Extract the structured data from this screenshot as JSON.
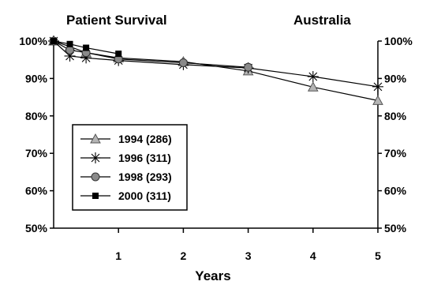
{
  "chart_data": {
    "type": "line",
    "title": "Patient Survival",
    "subtitle": "Australia",
    "xlabel": "Years",
    "ylabel": "",
    "xlim": [
      0,
      5
    ],
    "ylim": [
      50,
      100
    ],
    "x_ticks": [
      "1",
      "2",
      "3",
      "4",
      "5"
    ],
    "y_ticks": [
      "50%",
      "60%",
      "70%",
      "80%",
      "90%",
      "100%"
    ],
    "grid": false,
    "legend_position": "bottom-left",
    "series": [
      {
        "name": "1994 (286)",
        "marker": "triangle",
        "x": [
          0,
          0.25,
          0.5,
          1,
          2,
          3,
          4,
          5
        ],
        "y": [
          100,
          98.5,
          96.9,
          95.5,
          94.5,
          92,
          87.7,
          84.1
        ]
      },
      {
        "name": "1996 (311)",
        "marker": "star",
        "x": [
          0,
          0.25,
          0.5,
          1,
          2,
          3,
          4,
          5
        ],
        "y": [
          100,
          96.0,
          95.5,
          94.8,
          93.7,
          92.8,
          90.5,
          87.8
        ]
      },
      {
        "name": "1998 (293)",
        "marker": "circle",
        "x": [
          0,
          0.25,
          0.5,
          1,
          2,
          3
        ],
        "y": [
          100,
          97.6,
          96.9,
          95.2,
          94.2,
          93.0
        ]
      },
      {
        "name": "2000 (311)",
        "marker": "square",
        "x": [
          0,
          0.25,
          0.5,
          1
        ],
        "y": [
          100,
          99.2,
          98.2,
          96.6
        ]
      }
    ]
  }
}
